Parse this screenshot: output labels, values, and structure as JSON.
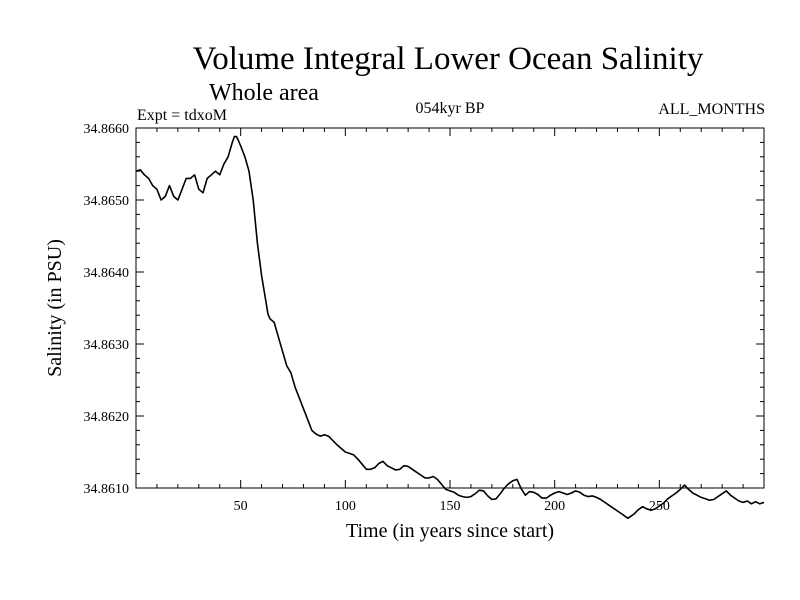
{
  "chart_data": {
    "type": "line",
    "title": "Volume Integral Lower Ocean Salinity",
    "subtitle": "Whole area",
    "annotations": {
      "left": "Expt = tdxoM",
      "center": "054kyr BP",
      "right": "ALL_MONTHS"
    },
    "xlabel": "Time (in years since start)",
    "ylabel": "Salinity (in PSU)",
    "xlim": [
      0,
      300
    ],
    "ylim": [
      34.861,
      34.866
    ],
    "xticks": [
      50,
      100,
      150,
      200,
      250
    ],
    "xtick_labels": [
      "50",
      "100",
      "150",
      "200",
      "250"
    ],
    "yticks": [
      34.861,
      34.862,
      34.863,
      34.864,
      34.865,
      34.866
    ],
    "ytick_labels": [
      "34.8610",
      "34.8620",
      "34.8630",
      "34.8640",
      "34.8650",
      "34.8660"
    ],
    "grid": false,
    "color": "#000000",
    "series": [
      {
        "x": [
          0,
          2,
          4,
          6,
          8,
          10,
          12,
          14,
          16,
          18,
          20,
          22,
          24,
          26,
          28,
          30,
          32,
          34,
          36,
          38,
          40,
          42,
          44,
          46,
          47,
          48,
          49,
          50,
          52,
          54,
          56,
          58,
          60,
          62,
          63,
          64,
          66,
          68,
          70,
          72,
          74,
          76,
          78,
          80,
          82,
          84,
          86,
          88,
          90,
          92,
          94,
          96,
          98,
          100,
          102,
          104,
          106,
          108,
          110,
          112,
          114,
          116,
          118,
          120,
          122,
          124,
          126,
          128,
          130,
          132,
          134,
          136,
          138,
          140,
          142,
          144,
          146,
          148,
          150,
          152,
          154,
          156,
          158,
          160,
          162,
          164,
          166,
          168,
          170,
          172,
          174,
          176,
          178,
          180,
          182,
          184,
          186,
          188,
          190,
          192,
          194,
          196,
          198,
          200,
          202,
          204,
          206,
          208,
          210,
          212,
          214,
          216,
          218,
          220,
          222,
          224,
          226,
          228,
          230,
          232,
          234,
          235,
          236,
          238,
          240,
          242,
          244,
          246,
          248,
          250,
          252,
          254,
          256,
          258,
          260,
          262,
          264,
          266,
          268,
          270,
          272,
          274,
          276,
          278,
          280,
          282,
          284,
          286,
          288,
          290,
          292,
          294,
          296,
          298,
          300
        ],
        "y": [
          34.8654,
          34.86542,
          34.86535,
          34.8653,
          34.8652,
          34.86515,
          34.865,
          34.86505,
          34.8652,
          34.86505,
          34.865,
          34.86515,
          34.8653,
          34.8653,
          34.86535,
          34.86515,
          34.8651,
          34.8653,
          34.86535,
          34.8654,
          34.86535,
          34.8655,
          34.8656,
          34.8658,
          34.86588,
          34.86588,
          34.86582,
          34.86575,
          34.8656,
          34.8654,
          34.865,
          34.8644,
          34.86395,
          34.8636,
          34.86342,
          34.86335,
          34.8633,
          34.8631,
          34.8629,
          34.8627,
          34.8626,
          34.8624,
          34.86225,
          34.8621,
          34.86195,
          34.8618,
          34.86175,
          34.86172,
          34.86174,
          34.86172,
          34.86166,
          34.8616,
          34.86155,
          34.8615,
          34.86148,
          34.86146,
          34.8614,
          34.86133,
          34.86126,
          34.86126,
          34.86128,
          34.86134,
          34.86137,
          34.86131,
          34.86128,
          34.86125,
          34.86126,
          34.86131,
          34.8613,
          34.86126,
          34.86122,
          34.86118,
          34.86114,
          34.86114,
          34.86116,
          34.86112,
          34.86105,
          34.86098,
          34.86096,
          34.86094,
          34.8609,
          34.86088,
          34.86087,
          34.86088,
          34.86092,
          34.86097,
          34.86096,
          34.86089,
          34.86084,
          34.86085,
          34.86092,
          34.861,
          34.86106,
          34.8611,
          34.86112,
          34.86099,
          34.8609,
          34.86095,
          34.86094,
          34.86091,
          34.86086,
          34.86086,
          34.8609,
          34.86093,
          34.86095,
          34.86093,
          34.86091,
          34.86093,
          34.86096,
          34.86094,
          34.8609,
          34.86088,
          34.86089,
          34.86087,
          34.86084,
          34.8608,
          34.86076,
          34.86072,
          34.86068,
          34.86064,
          34.8606,
          34.86058,
          34.8606,
          34.86064,
          34.8607,
          34.86074,
          34.86071,
          34.86069,
          34.86071,
          34.86075,
          34.86079,
          34.86085,
          34.86089,
          34.86093,
          34.86098,
          34.86104,
          34.86098,
          34.86093,
          34.8609,
          34.86087,
          34.86085,
          34.86083,
          34.86084,
          34.86088,
          34.86092,
          34.86096,
          34.8609,
          34.86086,
          34.86082,
          34.8608,
          34.86082,
          34.86078,
          34.86081,
          34.86078,
          34.8608
        ]
      }
    ]
  }
}
